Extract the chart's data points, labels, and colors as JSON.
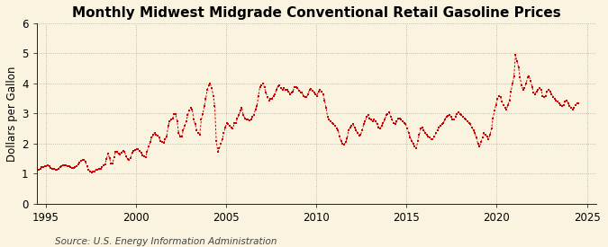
{
  "title": "Monthly Midwest Midgrade Conventional Retail Gasoline Prices",
  "ylabel": "Dollars per Gallon",
  "source": "Source: U.S. Energy Information Administration",
  "xlim": [
    1994.5,
    2025.5
  ],
  "ylim": [
    0,
    6
  ],
  "yticks": [
    0,
    1,
    2,
    3,
    4,
    5,
    6
  ],
  "xticks": [
    1995,
    2000,
    2005,
    2010,
    2015,
    2020,
    2025
  ],
  "bg_color": "#faf3e0",
  "line_color": "#cc0000",
  "marker_color": "#cc0000",
  "grid_color": "#999999",
  "title_fontsize": 11,
  "label_fontsize": 8.5,
  "source_fontsize": 7.5,
  "prices": [
    1.13,
    1.16,
    1.22,
    1.23,
    1.25,
    1.26,
    1.28,
    1.24,
    1.19,
    1.17,
    1.15,
    1.14,
    1.14,
    1.15,
    1.22,
    1.26,
    1.27,
    1.27,
    1.27,
    1.26,
    1.24,
    1.22,
    1.2,
    1.18,
    1.21,
    1.25,
    1.31,
    1.37,
    1.43,
    1.46,
    1.47,
    1.39,
    1.25,
    1.13,
    1.08,
    1.05,
    1.06,
    1.08,
    1.13,
    1.14,
    1.16,
    1.17,
    1.21,
    1.27,
    1.32,
    1.5,
    1.67,
    1.51,
    1.35,
    1.34,
    1.54,
    1.72,
    1.72,
    1.66,
    1.64,
    1.71,
    1.75,
    1.73,
    1.57,
    1.49,
    1.46,
    1.51,
    1.7,
    1.75,
    1.79,
    1.83,
    1.82,
    1.76,
    1.7,
    1.62,
    1.58,
    1.55,
    1.74,
    1.89,
    2.04,
    2.19,
    2.29,
    2.34,
    2.29,
    2.26,
    2.19,
    2.09,
    2.04,
    2.02,
    2.14,
    2.24,
    2.59,
    2.74,
    2.79,
    2.84,
    2.99,
    2.97,
    2.74,
    2.34,
    2.24,
    2.24,
    2.44,
    2.59,
    2.74,
    2.94,
    3.09,
    3.19,
    3.14,
    2.79,
    2.64,
    2.44,
    2.34,
    2.29,
    2.79,
    2.99,
    3.24,
    3.49,
    3.79,
    3.94,
    3.99,
    3.84,
    3.59,
    3.24,
    2.09,
    1.74,
    1.84,
    1.99,
    2.14,
    2.34,
    2.54,
    2.69,
    2.64,
    2.59,
    2.54,
    2.49,
    2.67,
    2.67,
    2.84,
    2.94,
    3.09,
    3.19,
    2.94,
    2.84,
    2.79,
    2.81,
    2.76,
    2.79,
    2.89,
    2.94,
    3.14,
    3.24,
    3.59,
    3.89,
    3.94,
    4.01,
    3.87,
    3.71,
    3.54,
    3.44,
    3.49,
    3.49,
    3.59,
    3.64,
    3.79,
    3.91,
    3.94,
    3.84,
    3.79,
    3.84,
    3.79,
    3.79,
    3.74,
    3.64,
    3.69,
    3.74,
    3.89,
    3.89,
    3.84,
    3.77,
    3.71,
    3.69,
    3.59,
    3.54,
    3.54,
    3.64,
    3.79,
    3.81,
    3.77,
    3.71,
    3.64,
    3.59,
    3.74,
    3.79,
    3.74,
    3.64,
    3.44,
    3.19,
    2.89,
    2.79,
    2.74,
    2.69,
    2.64,
    2.59,
    2.49,
    2.44,
    2.24,
    2.07,
    1.99,
    1.97,
    2.04,
    2.17,
    2.44,
    2.54,
    2.59,
    2.64,
    2.54,
    2.44,
    2.34,
    2.27,
    2.29,
    2.44,
    2.64,
    2.74,
    2.89,
    2.94,
    2.84,
    2.79,
    2.74,
    2.79,
    2.74,
    2.64,
    2.54,
    2.49,
    2.59,
    2.69,
    2.79,
    2.94,
    2.99,
    3.04,
    2.89,
    2.79,
    2.69,
    2.64,
    2.74,
    2.84,
    2.84,
    2.79,
    2.74,
    2.69,
    2.64,
    2.49,
    2.34,
    2.19,
    2.09,
    1.99,
    1.89,
    1.84,
    2.09,
    2.29,
    2.49,
    2.54,
    2.44,
    2.34,
    2.29,
    2.24,
    2.19,
    2.14,
    2.14,
    2.24,
    2.34,
    2.44,
    2.54,
    2.59,
    2.64,
    2.69,
    2.79,
    2.89,
    2.91,
    2.94,
    2.89,
    2.81,
    2.79,
    2.89,
    2.99,
    3.04,
    2.99,
    2.94,
    2.89,
    2.84,
    2.79,
    2.74,
    2.69,
    2.64,
    2.54,
    2.44,
    2.34,
    2.19,
    1.99,
    1.89,
    2.04,
    2.19,
    2.34,
    2.29,
    2.24,
    2.14,
    2.29,
    2.49,
    2.84,
    3.09,
    3.29,
    3.49,
    3.59,
    3.54,
    3.39,
    3.29,
    3.19,
    3.14,
    3.29,
    3.44,
    3.74,
    3.99,
    4.24,
    4.94,
    4.74,
    4.54,
    4.19,
    3.94,
    3.79,
    3.84,
    3.99,
    4.19,
    4.24,
    4.09,
    3.89,
    3.69,
    3.64,
    3.74,
    3.79,
    3.84,
    3.79,
    3.59,
    3.54,
    3.59,
    3.74,
    3.79,
    3.74,
    3.64,
    3.54,
    3.49,
    3.44,
    3.39,
    3.34,
    3.29,
    3.24,
    3.29,
    3.39,
    3.44,
    3.34,
    3.24,
    3.19,
    3.14,
    3.19,
    3.29,
    3.34,
    3.34
  ],
  "start_year": 1994,
  "start_month": 8
}
